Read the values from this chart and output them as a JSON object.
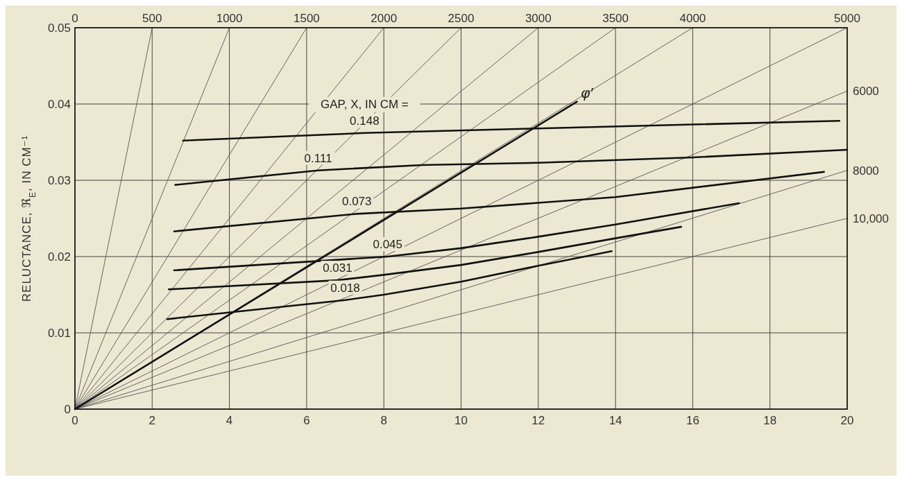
{
  "chart_data": {
    "type": "line",
    "ylabel": "RELUCTANCE, ℜ$_{E}$, IN CM⁻¹",
    "legend_title": "GAP, X, IN CM =",
    "xlim": [
      0,
      20
    ],
    "xticks": [
      0,
      2,
      4,
      6,
      8,
      10,
      12,
      14,
      16,
      18,
      20
    ],
    "ylim": [
      0,
      0.05
    ],
    "yticks": [
      {
        "value": 0,
        "label": "0"
      },
      0.01,
      0.02,
      0.03,
      0.04,
      0.05
    ],
    "x2lim": [
      0,
      5000
    ],
    "x2ticks": [
      0,
      500,
      1000,
      1500,
      2000,
      2500,
      3000,
      3500,
      4000,
      5000
    ],
    "grid": true,
    "series": [
      {
        "color": "#555555",
        "x": [
          0,
          2
        ],
        "values": [
          0,
          0.05
        ]
      },
      {
        "color": "#555555",
        "x": [
          0,
          4
        ],
        "values": [
          0,
          0.05
        ]
      },
      {
        "color": "#555555",
        "x": [
          0,
          6
        ],
        "values": [
          0,
          0.05
        ]
      },
      {
        "color": "#555555",
        "x": [
          0,
          8
        ],
        "values": [
          0,
          0.05
        ]
      },
      {
        "color": "#555555",
        "x": [
          0,
          10
        ],
        "values": [
          0,
          0.05
        ]
      },
      {
        "color": "#555555",
        "x": [
          0,
          12
        ],
        "values": [
          0,
          0.05
        ]
      },
      {
        "color": "#555555",
        "x": [
          0,
          14
        ],
        "values": [
          0,
          0.05
        ]
      },
      {
        "color": "#555555",
        "x": [
          0,
          16
        ],
        "values": [
          0,
          0.05
        ]
      },
      {
        "color": "#555555",
        "x": [
          0,
          20
        ],
        "values": [
          0,
          0.05
        ]
      },
      {
        "name": "6000",
        "color": "#555555",
        "x": [
          0,
          20
        ],
        "values": [
          0,
          0.0417
        ]
      },
      {
        "name": "8000",
        "color": "#555555",
        "x": [
          0,
          20
        ],
        "values": [
          0,
          0.0313
        ]
      },
      {
        "name": "10,000",
        "color": "#555555",
        "x": [
          0,
          20
        ],
        "values": [
          0,
          0.025
        ]
      },
      {
        "name": "φ′",
        "color": "#111111",
        "x": [
          0,
          13.0
        ],
        "values": [
          0,
          0.0403
        ]
      },
      {
        "name": "0.148",
        "color": "#111111",
        "x": [
          2.8,
          7.5,
          12,
          19.8
        ],
        "values": [
          0.0352,
          0.0362,
          0.0368,
          0.0378
        ]
      },
      {
        "name": "0.111",
        "color": "#111111",
        "x": [
          2.6,
          6.3,
          9,
          12,
          16,
          20
        ],
        "values": [
          0.0294,
          0.0313,
          0.032,
          0.0323,
          0.033,
          0.034
        ]
      },
      {
        "name": "0.073",
        "color": "#111111",
        "x": [
          2.57,
          7.3,
          10,
          14,
          19.4
        ],
        "values": [
          0.0233,
          0.0256,
          0.0263,
          0.0278,
          0.0311
        ]
      },
      {
        "name": "0.045",
        "color": "#111111",
        "x": [
          2.57,
          8.1,
          10,
          12,
          14,
          17.2
        ],
        "values": [
          0.0182,
          0.02,
          0.0211,
          0.0226,
          0.0242,
          0.027
        ]
      },
      {
        "name": "0.031",
        "color": "#111111",
        "x": [
          2.43,
          6.8,
          8,
          10,
          12,
          14,
          15.7
        ],
        "values": [
          0.0157,
          0.0169,
          0.0176,
          0.0189,
          0.0206,
          0.0224,
          0.0239
        ]
      },
      {
        "name": "0.018",
        "color": "#111111",
        "x": [
          2.39,
          7,
          8,
          10,
          12,
          13.9
        ],
        "values": [
          0.0118,
          0.0143,
          0.015,
          0.0167,
          0.0188,
          0.0207
        ]
      }
    ]
  }
}
